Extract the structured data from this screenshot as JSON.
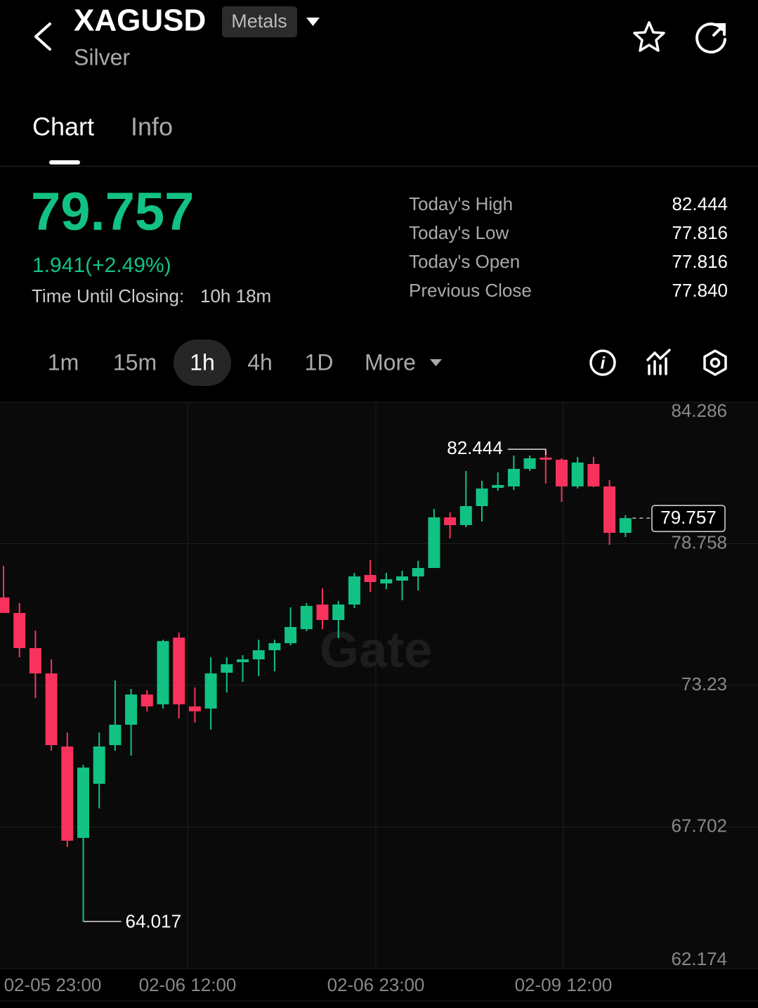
{
  "header": {
    "symbol": "XAGUSD",
    "badge": "Metals",
    "name": "Silver"
  },
  "tabs": [
    "Chart",
    "Info"
  ],
  "quote": {
    "price": "79.757",
    "change": "1.941(+2.49%)",
    "closing_label": "Time Until Closing:",
    "closing_value": "10h 18m",
    "stats": [
      {
        "label": "Today's High",
        "value": "82.444"
      },
      {
        "label": "Today's Low",
        "value": "77.816"
      },
      {
        "label": "Today's Open",
        "value": "77.816"
      },
      {
        "label": "Previous Close",
        "value": "77.840"
      }
    ]
  },
  "intervals": [
    "1m",
    "15m",
    "1h",
    "4h",
    "1D"
  ],
  "more": "More",
  "chart_data": {
    "type": "candlestick",
    "up_color": "#11c283",
    "down_color": "#f7325c",
    "ylim": [
      62.174,
      84.286
    ],
    "yticks": [
      84.286,
      78.758,
      73.23,
      67.702,
      62.174
    ],
    "x_labels": [
      "02-05 23:00",
      "02-06 12:00",
      "02-06 23:00",
      "02-09 12:00"
    ],
    "open": [
      76.659,
      76.055,
      74.684,
      73.696,
      70.843,
      67.276,
      69.389,
      70.898,
      71.693,
      72.873,
      72.489,
      75.095,
      72.407,
      72.324,
      73.723,
      74.135,
      74.245,
      74.601,
      74.876,
      75.424,
      76.385,
      75.781,
      76.385,
      77.537,
      77.208,
      77.318,
      77.482,
      77.811,
      79.787,
      79.485,
      80.226,
      80.939,
      80.994,
      81.68,
      82.119,
      82.036,
      80.994,
      81.872,
      80.994,
      79.183
    ],
    "high": [
      77.894,
      76.44,
      75.37,
      74.245,
      71.392,
      70.129,
      71.392,
      73.422,
      73.093,
      73.038,
      75.013,
      75.287,
      73.147,
      74.327,
      74.327,
      74.409,
      75.013,
      75.013,
      76.275,
      76.44,
      77.016,
      76.522,
      77.619,
      78.113,
      77.619,
      77.702,
      78.086,
      80.116,
      79.979,
      81.597,
      81.213,
      81.542,
      82.201,
      82.201,
      82.444,
      82.091,
      82.146,
      82.146,
      81.241,
      79.869
    ],
    "low": [
      76.055,
      74.327,
      72.736,
      70.678,
      66.92,
      64.017,
      68.429,
      70.678,
      70.486,
      72.215,
      72.324,
      71.94,
      71.776,
      71.501,
      72.955,
      73.367,
      73.586,
      73.778,
      74.793,
      75.342,
      75.424,
      75.068,
      76.248,
      76.879,
      76.988,
      76.549,
      76.933,
      77.811,
      78.964,
      79.403,
      79.622,
      80.829,
      80.857,
      81.597,
      81.104,
      80.39,
      80.912,
      80.966,
      78.717,
      79.018
    ],
    "close": [
      76.055,
      74.684,
      73.696,
      70.898,
      67.167,
      70.02,
      70.843,
      71.693,
      72.873,
      72.407,
      74.958,
      72.489,
      72.215,
      73.696,
      74.053,
      74.245,
      74.601,
      74.876,
      75.507,
      76.33,
      75.781,
      76.385,
      77.482,
      77.263,
      77.372,
      77.482,
      77.811,
      79.787,
      79.485,
      80.226,
      80.912,
      81.049,
      81.68,
      82.091,
      82.036,
      80.994,
      81.927,
      80.994,
      79.183,
      79.757
    ],
    "high_marker": 34,
    "low_marker": 5
  }
}
